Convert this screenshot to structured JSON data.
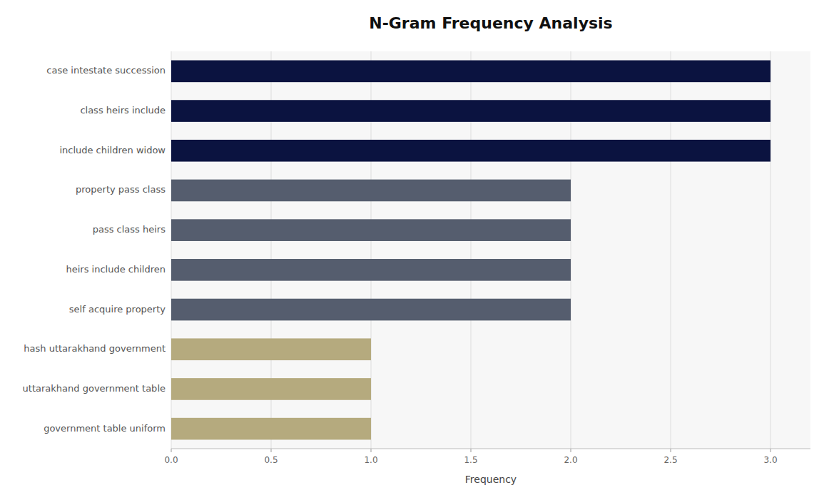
{
  "chart_data": {
    "type": "bar",
    "orientation": "horizontal",
    "title": "N-Gram Frequency Analysis",
    "categories": [
      "government table uniform",
      "uttarakhand government table",
      "hash uttarakhand government",
      "self acquire property",
      "heirs include children",
      "pass class heirs",
      "property pass class",
      "include children widow",
      "class heirs include",
      "case intestate succession"
    ],
    "values": [
      1,
      1,
      1,
      2,
      2,
      2,
      2,
      3,
      3,
      3
    ],
    "colors": [
      "#b5aa7e",
      "#b5aa7e",
      "#b5aa7e",
      "#555d6e",
      "#555d6e",
      "#555d6e",
      "#555d6e",
      "#0b1340",
      "#0b1340",
      "#0b1340"
    ],
    "xlabel": "Frequency",
    "xlim": [
      0,
      3.2
    ],
    "xticks": [
      {
        "value": 0,
        "label": "0.0"
      },
      0.5,
      {
        "value": 1,
        "label": "1.0"
      },
      1.5,
      {
        "value": 2,
        "label": "2.0"
      },
      2.5,
      {
        "value": 3,
        "label": "3.0"
      }
    ],
    "grid": true
  }
}
